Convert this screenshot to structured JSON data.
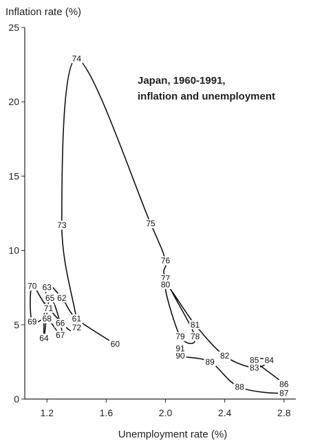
{
  "chart_data": {
    "type": "line",
    "title_lines": [
      "Japan, 1960-1991,",
      "inflation and unemployment"
    ],
    "xlabel": "Unemployment rate (%)",
    "ylabel": "Inflation rate (%)",
    "xlim": [
      1.05,
      2.88
    ],
    "ylim": [
      0,
      25
    ],
    "xticks": [
      1.2,
      1.6,
      2.0,
      2.4,
      2.8
    ],
    "xtick_labels": [
      "1.2",
      "1.6",
      "2.0",
      "2.4",
      "2.8"
    ],
    "yticks": [
      0,
      5,
      10,
      15,
      20,
      25
    ],
    "ytick_labels": [
      "0",
      "5",
      "10",
      "15",
      "20",
      "25"
    ],
    "grid": false,
    "series": [
      {
        "points": [
          {
            "year": "60",
            "x": 1.66,
            "y": 3.7
          },
          {
            "year": "61",
            "x": 1.4,
            "y": 5.4
          },
          {
            "year": "62",
            "x": 1.3,
            "y": 6.8
          },
          {
            "year": "63",
            "x": 1.2,
            "y": 7.5
          },
          {
            "year": "64",
            "x": 1.18,
            "y": 4.1
          },
          {
            "year": "65",
            "x": 1.22,
            "y": 6.8
          },
          {
            "year": "66",
            "x": 1.29,
            "y": 5.1
          },
          {
            "year": "67",
            "x": 1.29,
            "y": 4.3
          },
          {
            "year": "68",
            "x": 1.2,
            "y": 5.4
          },
          {
            "year": "69",
            "x": 1.1,
            "y": 5.2
          },
          {
            "year": "70",
            "x": 1.1,
            "y": 7.6
          },
          {
            "year": "71",
            "x": 1.21,
            "y": 6.1
          },
          {
            "year": "72",
            "x": 1.4,
            "y": 4.8
          },
          {
            "year": "73",
            "x": 1.3,
            "y": 11.7
          },
          {
            "year": "74",
            "x": 1.4,
            "y": 22.9
          },
          {
            "year": "75",
            "x": 1.9,
            "y": 11.8
          },
          {
            "year": "76",
            "x": 2.0,
            "y": 9.3
          },
          {
            "year": "77",
            "x": 2.0,
            "y": 8.1
          },
          {
            "year": "78",
            "x": 2.2,
            "y": 4.2
          },
          {
            "year": "79",
            "x": 2.1,
            "y": 4.2
          },
          {
            "year": "80",
            "x": 2.0,
            "y": 7.7
          },
          {
            "year": "81",
            "x": 2.2,
            "y": 5.0
          },
          {
            "year": "82",
            "x": 2.4,
            "y": 2.9
          },
          {
            "year": "83",
            "x": 2.6,
            "y": 2.1
          },
          {
            "year": "84",
            "x": 2.7,
            "y": 2.6
          },
          {
            "year": "85",
            "x": 2.6,
            "y": 2.6
          },
          {
            "year": "86",
            "x": 2.8,
            "y": 1.0
          },
          {
            "year": "87",
            "x": 2.8,
            "y": 0.4
          },
          {
            "year": "88",
            "x": 2.5,
            "y": 0.8
          },
          {
            "year": "89",
            "x": 2.3,
            "y": 2.5
          },
          {
            "year": "90",
            "x": 2.1,
            "y": 2.9
          },
          {
            "year": "91",
            "x": 2.1,
            "y": 3.4
          }
        ]
      }
    ]
  }
}
